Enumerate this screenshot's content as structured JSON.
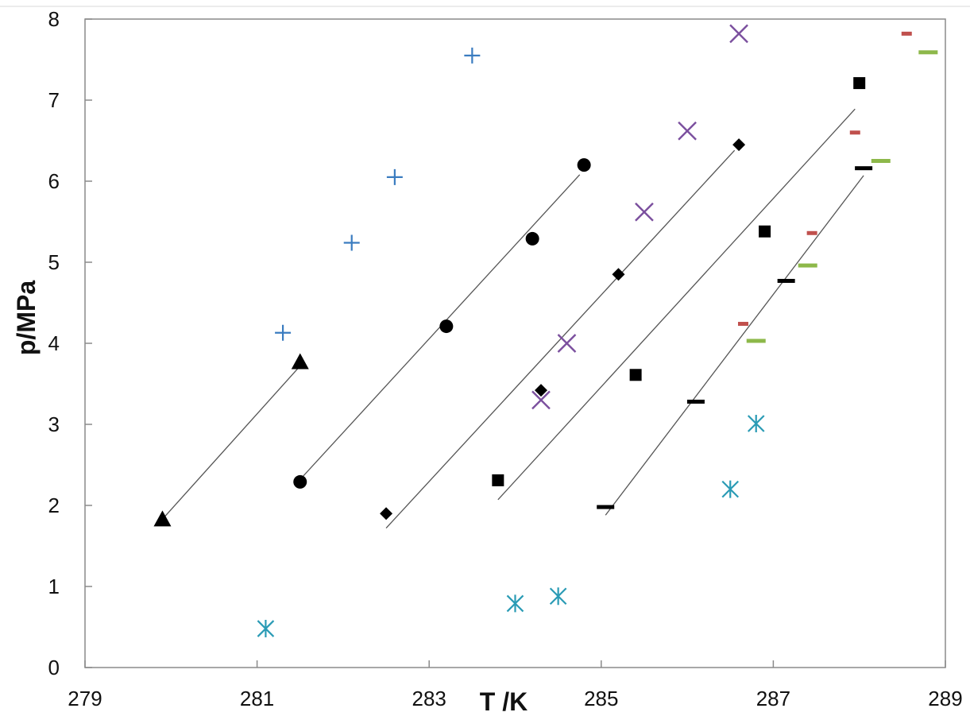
{
  "chart_data": {
    "type": "scatter",
    "xlabel": "T /K",
    "ylabel": "p/MPa",
    "xlim": [
      279,
      289
    ],
    "ylim": [
      0,
      8
    ],
    "x_ticks": [
      279,
      281,
      283,
      285,
      287,
      289
    ],
    "y_ticks": [
      0,
      1,
      2,
      3,
      4,
      5,
      6,
      7,
      8
    ],
    "grid": false,
    "legend": "none",
    "series": [
      {
        "marker": "cross",
        "color": "#3a7cc0",
        "points": [
          [
            281.3,
            4.13
          ],
          [
            282.1,
            5.24
          ],
          [
            282.6,
            6.05
          ],
          [
            283.5,
            7.55
          ]
        ]
      },
      {
        "marker": "asterisk",
        "color": "#2a9bb5",
        "points": [
          [
            281.1,
            0.48
          ],
          [
            284.0,
            0.79
          ],
          [
            284.5,
            0.88
          ],
          [
            286.5,
            2.2
          ],
          [
            286.8,
            3.01
          ]
        ]
      },
      {
        "marker": "triangle",
        "color": "#000000",
        "points": [
          [
            279.9,
            1.83
          ],
          [
            281.5,
            3.77
          ]
        ]
      },
      {
        "marker": "circle",
        "color": "#000000",
        "points": [
          [
            281.5,
            2.29
          ],
          [
            283.2,
            4.21
          ],
          [
            284.2,
            5.29
          ],
          [
            284.8,
            6.2
          ]
        ]
      },
      {
        "marker": "diamond",
        "color": "#000000",
        "points": [
          [
            282.5,
            1.9
          ],
          [
            284.3,
            3.42
          ],
          [
            285.2,
            4.85
          ],
          [
            286.6,
            6.45
          ]
        ]
      },
      {
        "marker": "x",
        "color": "#7b4f9e",
        "points": [
          [
            284.3,
            3.3
          ],
          [
            284.6,
            4.0
          ],
          [
            285.5,
            5.62
          ],
          [
            286.0,
            6.62
          ],
          [
            286.6,
            7.82
          ]
        ]
      },
      {
        "marker": "square",
        "color": "#000000",
        "points": [
          [
            283.8,
            2.31
          ],
          [
            285.4,
            3.61
          ],
          [
            286.9,
            5.38
          ],
          [
            288.0,
            7.21
          ]
        ]
      },
      {
        "marker": "dash",
        "color": "#000000",
        "points": [
          [
            285.05,
            1.98
          ],
          [
            286.1,
            3.28
          ],
          [
            287.15,
            4.77
          ],
          [
            288.05,
            6.16
          ]
        ]
      },
      {
        "marker": "dash-small",
        "color": "#c0504d",
        "points": [
          [
            286.65,
            4.24
          ],
          [
            287.45,
            5.36
          ],
          [
            287.95,
            6.6
          ],
          [
            288.55,
            7.82
          ]
        ]
      },
      {
        "marker": "dash-wide",
        "color": "#8db84a",
        "points": [
          [
            286.8,
            4.03
          ],
          [
            287.4,
            4.96
          ],
          [
            288.25,
            6.25
          ],
          [
            288.8,
            7.59
          ]
        ]
      }
    ],
    "fit_lines": [
      {
        "from": [
          279.9,
          1.83
        ],
        "to": [
          281.5,
          3.72
        ]
      },
      {
        "from": [
          281.5,
          2.32
        ],
        "to": [
          284.75,
          6.08
        ]
      },
      {
        "from": [
          282.5,
          1.72
        ],
        "to": [
          286.55,
          6.38
        ]
      },
      {
        "from": [
          283.8,
          2.07
        ],
        "to": [
          287.95,
          6.89
        ]
      },
      {
        "from": [
          285.05,
          1.88
        ],
        "to": [
          288.05,
          6.07
        ]
      }
    ]
  }
}
